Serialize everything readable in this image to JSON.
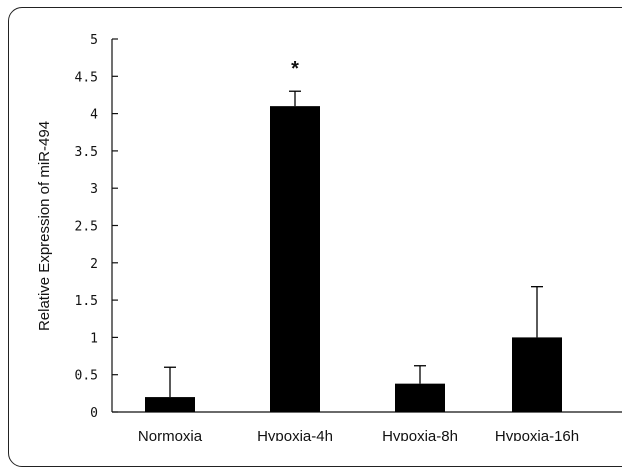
{
  "chart_data": {
    "type": "bar",
    "categories": [
      "Normoxia",
      "Hypoxia-4h",
      "Hypoxia-8h",
      "Hypoxia-16h"
    ],
    "values": [
      0.2,
      4.1,
      0.38,
      1.0
    ],
    "error_upper": [
      0.6,
      4.3,
      0.62,
      1.68
    ],
    "annotations": [
      "",
      "*",
      "",
      ""
    ],
    "ylabel": "Relative Expression of miR-494",
    "xlabel": "",
    "ylim": [
      0,
      5
    ],
    "yticks": [
      0,
      0.5,
      1,
      1.5,
      2,
      2.5,
      3,
      3.5,
      4,
      4.5,
      5
    ],
    "ytick_labels": [
      "0",
      "0.5",
      "1",
      "1.5",
      "2",
      "2.5",
      "3",
      "3.5",
      "4",
      "4.5",
      "5"
    ],
    "grid": false,
    "bar_color": "#000000"
  }
}
